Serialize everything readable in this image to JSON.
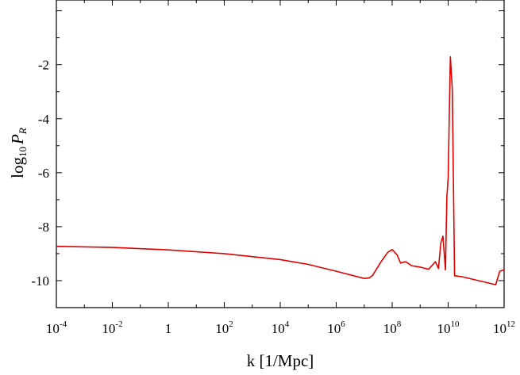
{
  "chart_data": {
    "type": "line",
    "xlabel": "k [1/Mpc]",
    "ylabel": {
      "prefix": "log",
      "sub": "10",
      "symbol": "P",
      "symbol_sub": "R"
    },
    "x_scale": "log10",
    "xlim": [
      0.0001,
      1000000000000
    ],
    "ylim": [
      -11,
      0.4
    ],
    "x_ticks": [
      {
        "value": 0.0001,
        "base": "10",
        "exp": "-4"
      },
      {
        "value": 0.01,
        "base": "10",
        "exp": "-2"
      },
      {
        "value": 1,
        "base": "1",
        "exp": ""
      },
      {
        "value": 100,
        "base": "10",
        "exp": "2"
      },
      {
        "value": 10000,
        "base": "10",
        "exp": "4"
      },
      {
        "value": 1000000,
        "base": "10",
        "exp": "6"
      },
      {
        "value": 100000000,
        "base": "10",
        "exp": "8"
      },
      {
        "value": 10000000000,
        "base": "10",
        "exp": "10"
      },
      {
        "value": 1000000000000,
        "base": "10",
        "exp": "12"
      }
    ],
    "y_ticks": [
      {
        "value": -2,
        "label": "-2"
      },
      {
        "value": -4,
        "label": "-4"
      },
      {
        "value": -6,
        "label": "-6"
      },
      {
        "value": -8,
        "label": "-8"
      },
      {
        "value": -10,
        "label": "-10"
      }
    ],
    "grid": false,
    "colors": {
      "line": "#e00000",
      "frame": "#000000"
    },
    "series": [
      {
        "x": [
          0.0001,
          0.01,
          1,
          100,
          10000,
          100000,
          1000000,
          10000000,
          15000000,
          20000000,
          40000000,
          70000000,
          100000000,
          150000000,
          200000000,
          300000000,
          500000000,
          1000000000,
          2000000000,
          3500000000,
          4500000000,
          5500000000,
          6500000000,
          8000000000,
          9000000000,
          10000000000,
          12000000000,
          14000000000,
          17000000000,
          30000000000,
          500000000000,
          700000000000,
          1000000000000
        ],
        "y": [
          -8.73,
          -8.77,
          -8.86,
          -9.0,
          -9.22,
          -9.4,
          -9.65,
          -9.92,
          -9.9,
          -9.8,
          -9.3,
          -8.95,
          -8.85,
          -9.05,
          -9.35,
          -9.3,
          -9.45,
          -9.5,
          -9.58,
          -9.3,
          -9.55,
          -8.6,
          -8.35,
          -9.6,
          -6.9,
          -6.2,
          -1.7,
          -2.9,
          -9.82,
          -9.85,
          -10.15,
          -9.65,
          -9.6
        ]
      }
    ]
  }
}
